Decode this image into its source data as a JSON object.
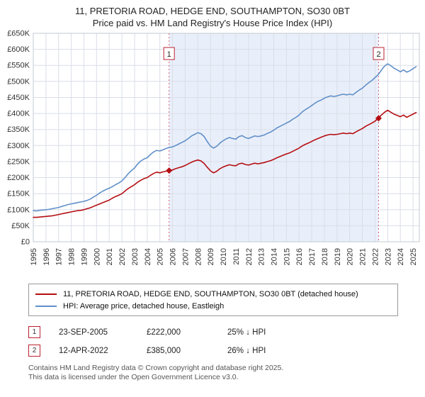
{
  "title": "11, PRETORIA ROAD, HEDGE END, SOUTHAMPTON, SO30 0BT",
  "subtitle": "Price paid vs. HM Land Registry's House Price Index (HPI)",
  "chart_data": {
    "type": "line",
    "unit": "GBP thousands",
    "xlim": [
      1995,
      2025.5
    ],
    "ylim": [
      0,
      650
    ],
    "x_ticks": [
      1995,
      1996,
      1997,
      1998,
      1999,
      2000,
      2001,
      2002,
      2003,
      2004,
      2005,
      2006,
      2007,
      2008,
      2009,
      2010,
      2011,
      2012,
      2013,
      2014,
      2015,
      2016,
      2017,
      2018,
      2019,
      2020,
      2021,
      2022,
      2023,
      2024,
      2025
    ],
    "y_ticks": [
      {
        "value": 0,
        "label": "£0"
      },
      {
        "value": 50,
        "label": "£50K"
      },
      {
        "value": 100,
        "label": "£100K"
      },
      {
        "value": 150,
        "label": "£150K"
      },
      {
        "value": 200,
        "label": "£200K"
      },
      {
        "value": 250,
        "label": "£250K"
      },
      {
        "value": 300,
        "label": "£300K"
      },
      {
        "value": 350,
        "label": "£350K"
      },
      {
        "value": 400,
        "label": "£400K"
      },
      {
        "value": 450,
        "label": "£450K"
      },
      {
        "value": 500,
        "label": "£500K"
      },
      {
        "value": 550,
        "label": "£550K"
      },
      {
        "value": 600,
        "label": "£600K"
      },
      {
        "value": 650,
        "label": "£650K"
      }
    ],
    "x_start": 1995,
    "x_step": 0.25,
    "series": [
      {
        "name": "11, PRETORIA ROAD, HEDGE END, SOUTHAMPTON, SO30 0BT (detached house)",
        "color": "#b50d12",
        "width": 1.6,
        "values": [
          76,
          76,
          77,
          78,
          79,
          80,
          81,
          83,
          85,
          87,
          89,
          91,
          93,
          95,
          97,
          98,
          100,
          103,
          106,
          110,
          114,
          118,
          122,
          126,
          130,
          136,
          141,
          145,
          150,
          158,
          166,
          172,
          178,
          186,
          192,
          197,
          200,
          207,
          213,
          217,
          215,
          218,
          220,
          222,
          224,
          228,
          231,
          234,
          238,
          243,
          248,
          252,
          255,
          252,
          244,
          232,
          221,
          215,
          220,
          228,
          233,
          237,
          240,
          238,
          237,
          243,
          245,
          241,
          239,
          242,
          245,
          243,
          245,
          247,
          250,
          253,
          257,
          262,
          266,
          270,
          274,
          277,
          282,
          287,
          292,
          299,
          304,
          308,
          313,
          318,
          322,
          326,
          330,
          333,
          335,
          334,
          335,
          337,
          339,
          337,
          339,
          337,
          343,
          348,
          353,
          360,
          365,
          370,
          376,
          385,
          395,
          404,
          410,
          404,
          398,
          394,
          390,
          395,
          388,
          393,
          398,
          403
        ]
      },
      {
        "name": "HPI: Average price, detached house, Eastleigh",
        "color": "#6190c8",
        "width": 1.6,
        "values": [
          97,
          96,
          98,
          99,
          100,
          101,
          103,
          105,
          107,
          110,
          113,
          116,
          118,
          120,
          122,
          124,
          126,
          129,
          133,
          139,
          145,
          152,
          158,
          163,
          167,
          172,
          178,
          183,
          190,
          200,
          212,
          222,
          230,
          243,
          252,
          258,
          262,
          272,
          280,
          285,
          283,
          287,
          291,
          294,
          296,
          300,
          305,
          310,
          315,
          322,
          330,
          335,
          340,
          337,
          328,
          312,
          298,
          292,
          298,
          308,
          315,
          321,
          325,
          322,
          320,
          328,
          331,
          325,
          322,
          326,
          330,
          328,
          330,
          333,
          338,
          342,
          348,
          355,
          360,
          365,
          370,
          375,
          382,
          388,
          395,
          405,
          412,
          418,
          425,
          432,
          438,
          442,
          448,
          452,
          455,
          453,
          455,
          458,
          460,
          458,
          460,
          458,
          466,
          473,
          479,
          488,
          496,
          503,
          512,
          521,
          535,
          548,
          555,
          549,
          541,
          536,
          530,
          536,
          529,
          533,
          540,
          546
        ]
      }
    ],
    "sale_markers": [
      {
        "label": "1",
        "x": 2005.73,
        "value": 222
      },
      {
        "label": "2",
        "x": 2022.28,
        "value": 385
      }
    ],
    "shaded_region": {
      "from": 2005.73,
      "to": 2022.28,
      "color": "#e9effa"
    },
    "marker_line_color": "#d4607a",
    "marker_box_border": "#bb2233",
    "grid_color": "#d9dee7",
    "axis_color": "#c3c8d2"
  },
  "legend": {
    "items": [
      {
        "label": "11, PRETORIA ROAD, HEDGE END, SOUTHAMPTON, SO30 0BT (detached house)"
      },
      {
        "label": "HPI: Average price, detached house, Eastleigh"
      }
    ]
  },
  "annotations": [
    {
      "num": "1",
      "date": "23-SEP-2005",
      "price": "£222,000",
      "delta": "25% ↓ HPI"
    },
    {
      "num": "2",
      "date": "12-APR-2022",
      "price": "£385,000",
      "delta": "26% ↓ HPI"
    }
  ],
  "footer": [
    "Contains HM Land Registry data © Crown copyright and database right 2025.",
    "This data is licensed under the Open Government Licence v3.0."
  ]
}
